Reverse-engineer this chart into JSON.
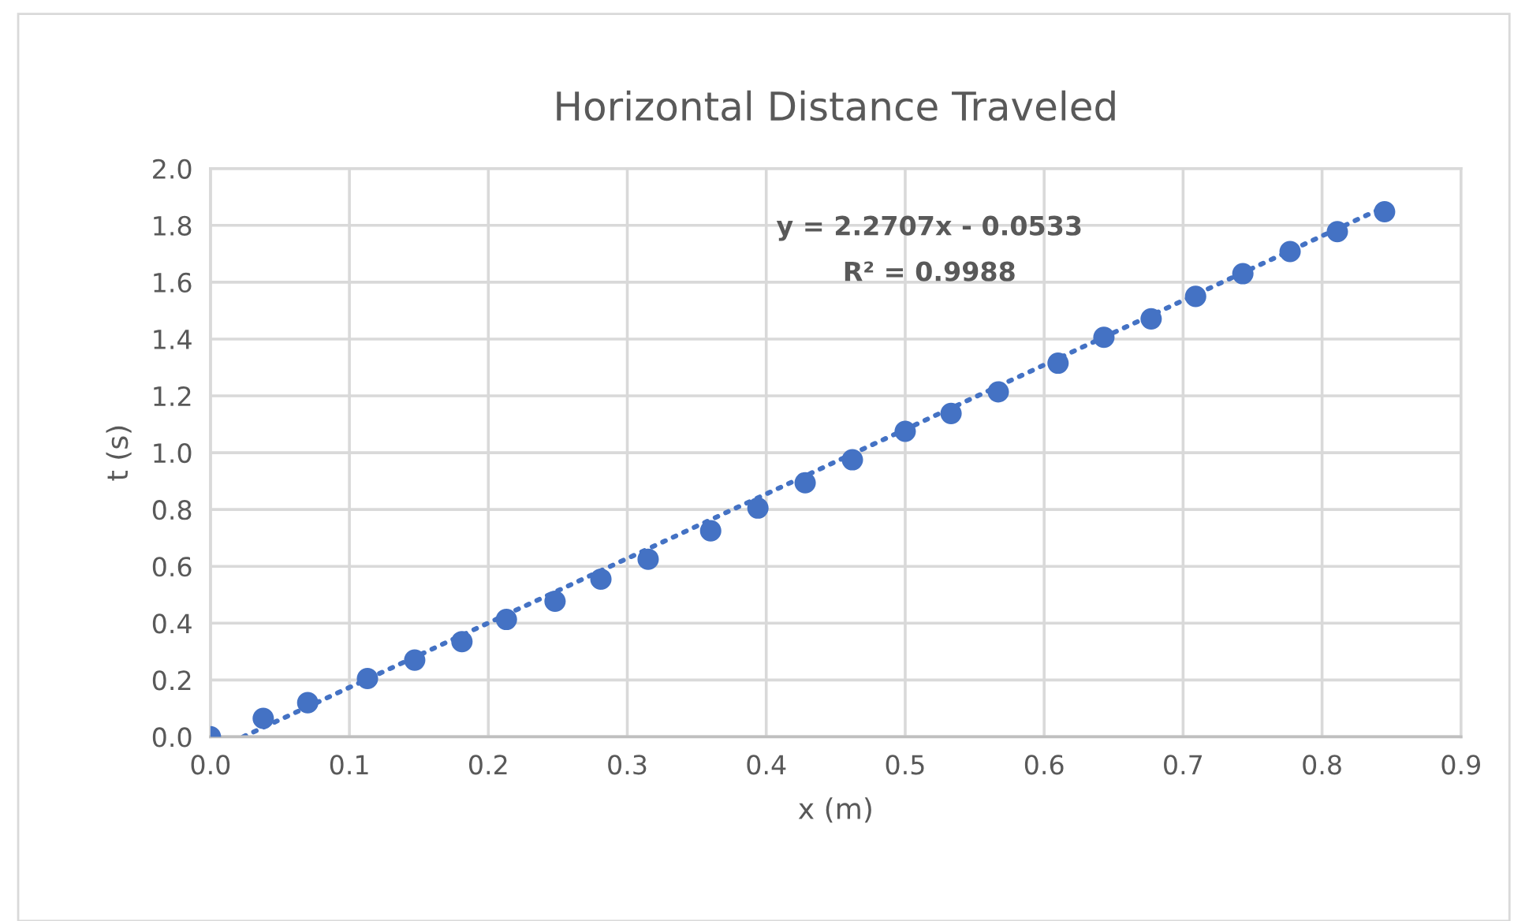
{
  "chart_data": {
    "type": "scatter",
    "title": "Horizontal Distance Traveled",
    "xlabel": "x (m)",
    "ylabel": "t (s)",
    "xlim": [
      0,
      0.9
    ],
    "xticks": [
      {
        "value": 0,
        "label": "0.0"
      },
      0.1,
      0.2,
      0.3,
      0.4,
      0.5,
      0.6,
      0.7,
      0.8,
      0.9
    ],
    "ylim": [
      0,
      2.0
    ],
    "yticks": [
      {
        "value": 0,
        "label": "0.0"
      },
      0.2,
      0.4,
      0.6,
      0.8,
      {
        "value": 1.0,
        "label": "1.0"
      },
      1.2,
      1.4,
      1.6,
      1.8,
      {
        "value": 2.0,
        "label": "2.0"
      }
    ],
    "grid": true,
    "annotations": [
      "y = 2.2707x - 0.0533",
      "R² = 0.9988"
    ],
    "series": [
      {
        "color": "#4472c4",
        "marker": "circle",
        "x": [
          0,
          0.038,
          0.07,
          0.113,
          0.147,
          0.181,
          0.213,
          0.248,
          0.281,
          0.315,
          0.36,
          0.394,
          0.428,
          0.462,
          0.5,
          0.533,
          0.567,
          0.61,
          0.643,
          0.677,
          0.709,
          0.743,
          0.777,
          0.811,
          0.845
        ],
        "values": [
          0,
          0.065,
          0.12,
          0.205,
          0.27,
          0.335,
          0.413,
          0.477,
          0.555,
          0.625,
          0.725,
          0.805,
          0.894,
          0.975,
          1.075,
          1.138,
          1.214,
          1.315,
          1.406,
          1.471,
          1.55,
          1.63,
          1.708,
          1.778,
          1.848
        ]
      },
      {
        "type": "line",
        "color": "#4472c4",
        "line_style": "dotted",
        "marker": "none",
        "x": [
          0.0235,
          0.845
        ],
        "values": [
          0.0,
          1.865
        ]
      }
    ]
  }
}
